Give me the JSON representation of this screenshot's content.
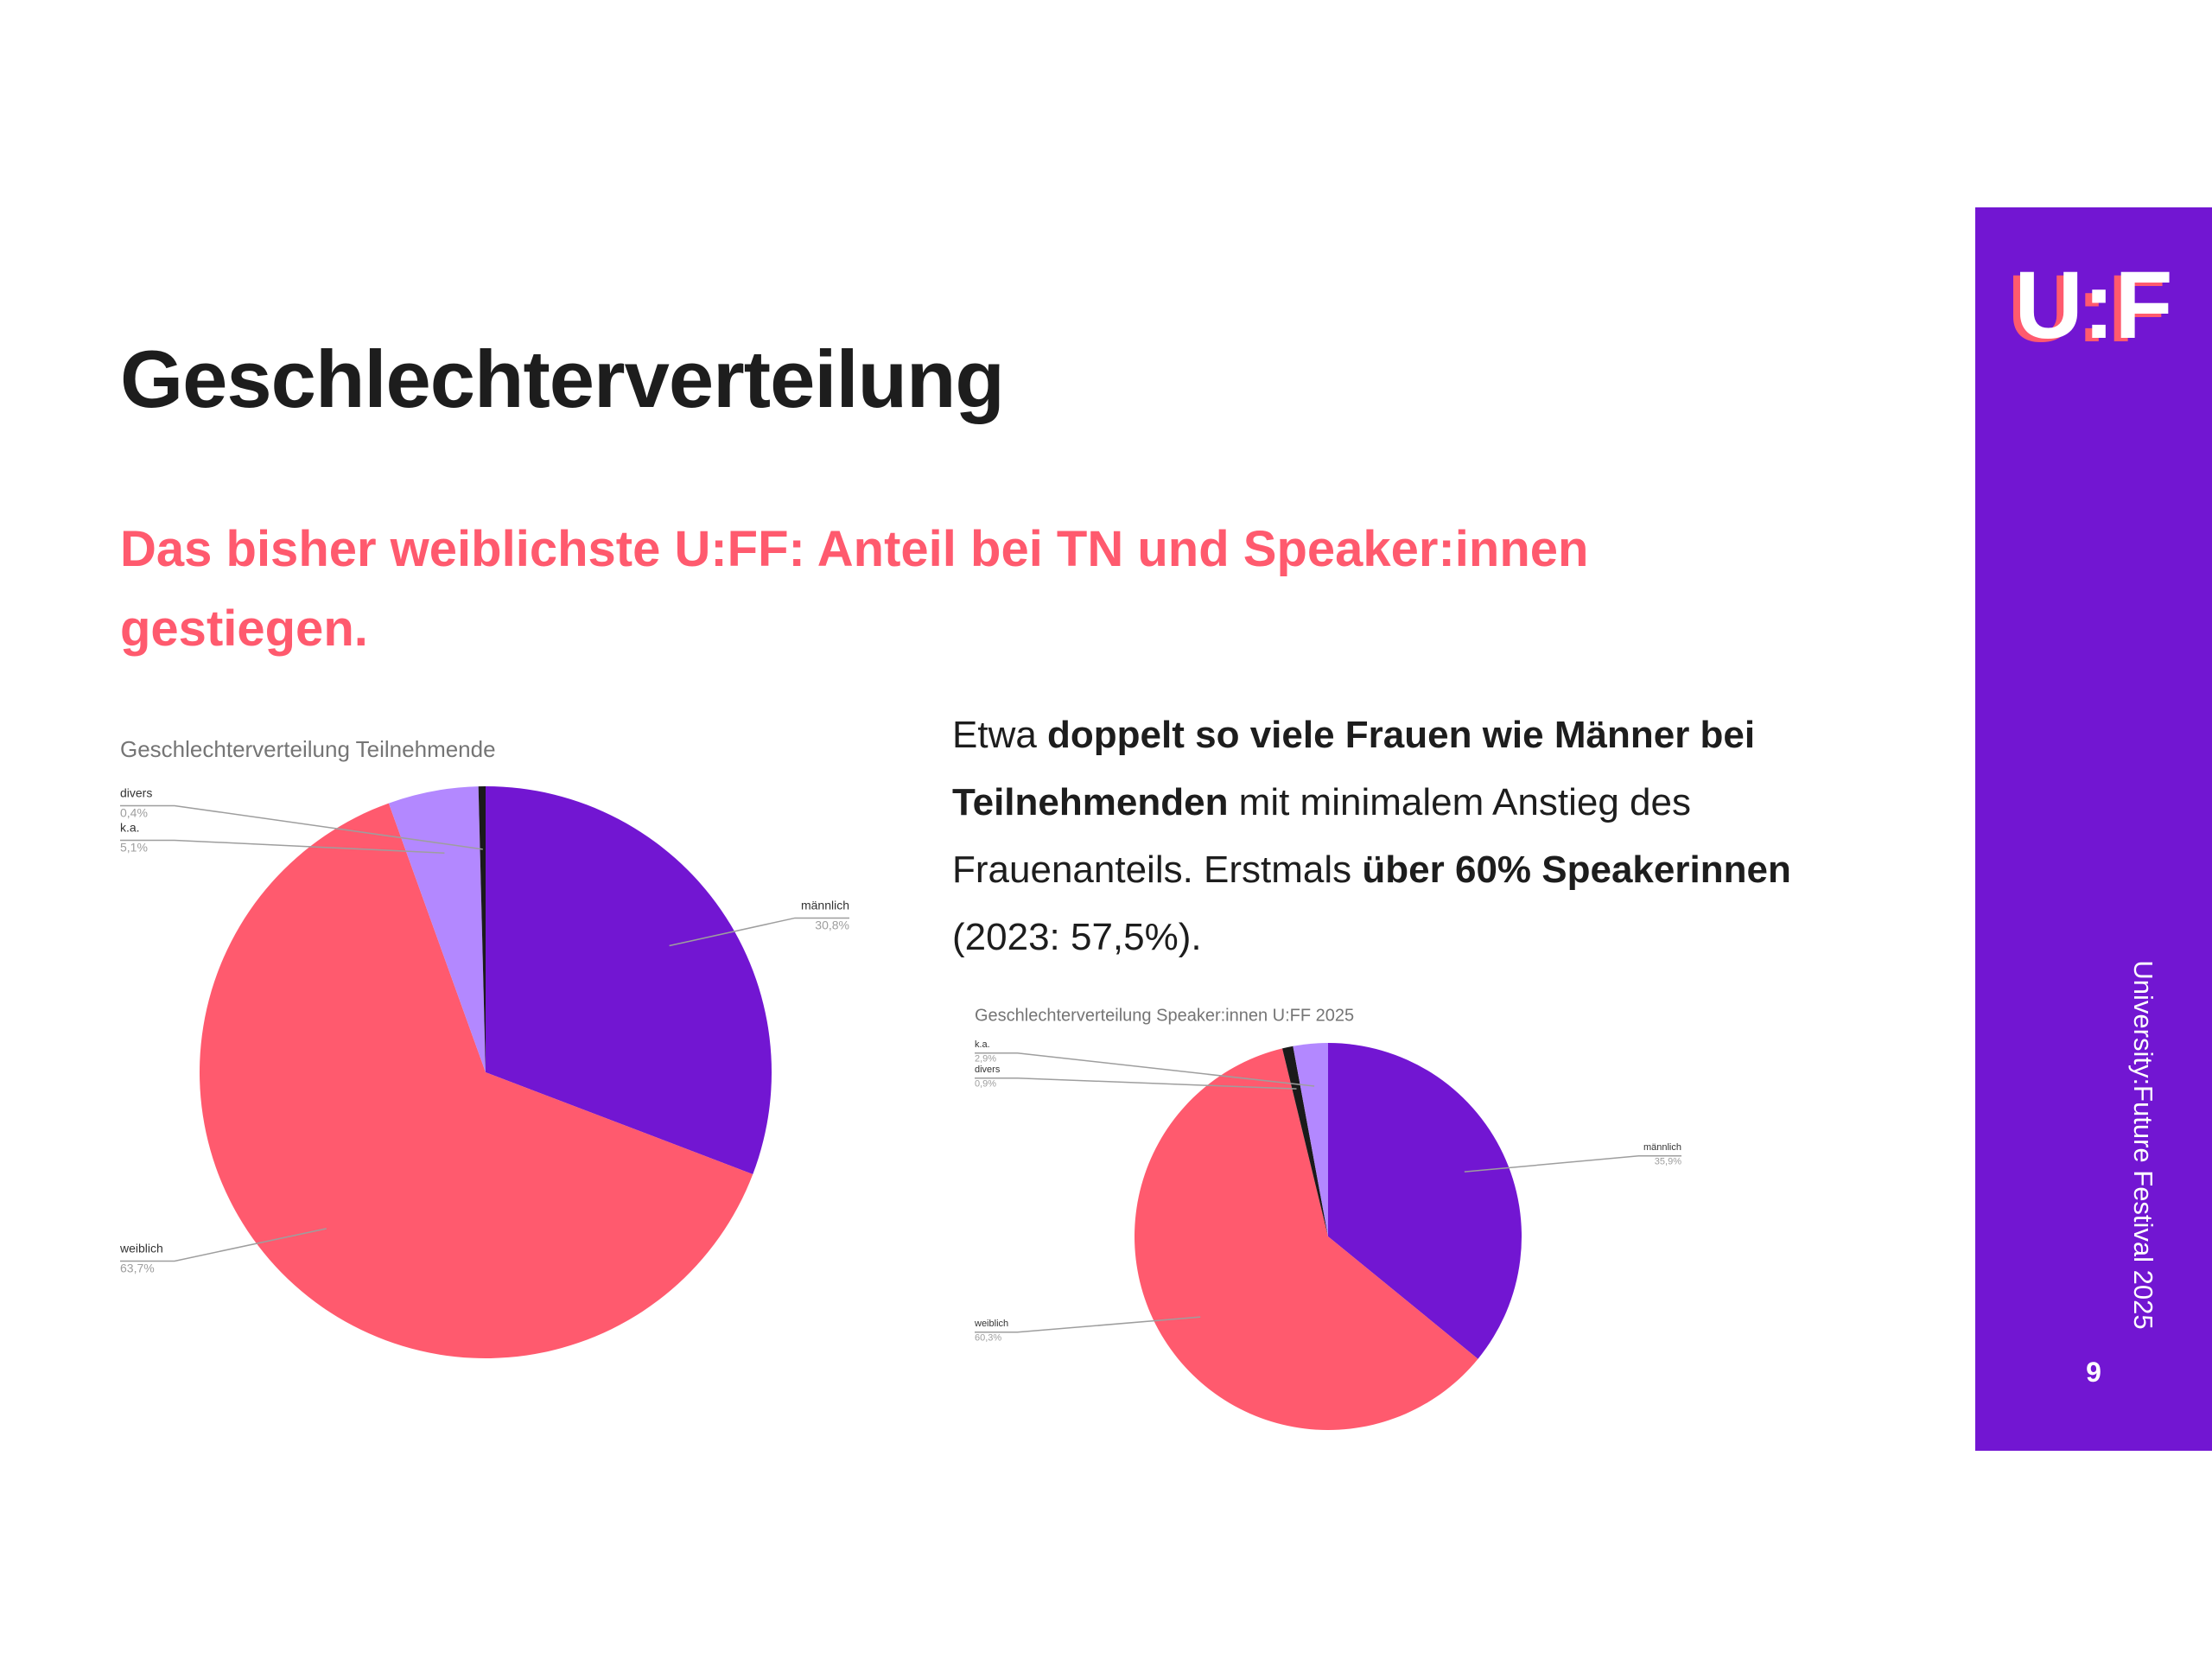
{
  "header": {
    "title": "Geschlechterverteilung",
    "subtitle": "Das bisher weiblichste U:FF: Anteil bei TN und Speaker:innen gestiegen."
  },
  "paragraph": [
    "Etwa ",
    "doppelt so viele Frauen wie Männer bei Teilnehmenden",
    " mit minimalem Anstieg des Frauenanteils. Erstmals ",
    "über 60% Speakerinnen",
    " (2023: 57,5%)."
  ],
  "sidebar": {
    "logo": "U:F",
    "caption": "University:Future Festival 2025",
    "page": "9"
  },
  "chart_data": [
    {
      "type": "pie",
      "title": "Geschlechterverteilung Teilnehmende",
      "categories": [
        "männlich",
        "weiblich",
        "k.a.",
        "divers"
      ],
      "values": [
        30.8,
        63.7,
        5.1,
        0.4
      ],
      "value_labels": [
        "30,8%",
        "63,7%",
        "5,1%",
        "0,4%"
      ],
      "colors": [
        "#7216d2",
        "#ff5a6e",
        "#b388ff",
        "#1a1a1a"
      ]
    },
    {
      "type": "pie",
      "title": "Geschlechterverteilung Speaker:innen U:FF 2025",
      "categories": [
        "männlich",
        "weiblich",
        "divers",
        "k.a."
      ],
      "values": [
        35.9,
        60.3,
        0.9,
        2.9
      ],
      "value_labels": [
        "35,9%",
        "60,3%",
        "0,9%",
        "2,9%"
      ],
      "colors": [
        "#7216d2",
        "#ff5a6e",
        "#1a1a1a",
        "#b388ff"
      ]
    }
  ]
}
